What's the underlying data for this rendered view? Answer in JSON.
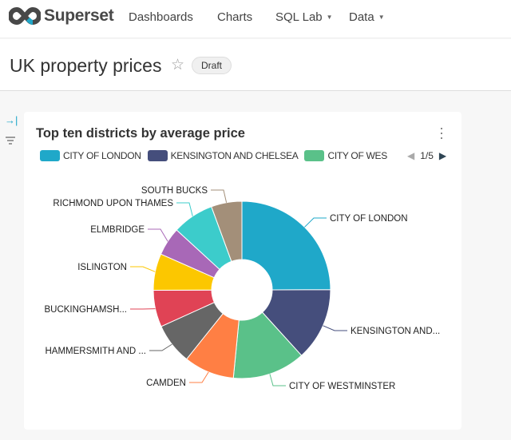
{
  "nav": {
    "brand": "Superset",
    "items": [
      {
        "label": "Dashboards"
      },
      {
        "label": "Charts"
      },
      {
        "label": "SQL Lab",
        "dropdown": true
      },
      {
        "label": "Data",
        "dropdown": true
      }
    ]
  },
  "dashboard": {
    "title": "UK property prices",
    "status": "Draft"
  },
  "chart": {
    "title": "Top ten districts by average price",
    "legend": {
      "items": [
        "CITY OF LONDON",
        "KENSINGTON AND CHELSEA",
        "CITY OF WES"
      ],
      "page": "1/5"
    }
  },
  "chart_data": {
    "type": "pie",
    "donut": true,
    "unit": "percent share (estimated)",
    "slices": [
      {
        "label": "CITY OF LONDON",
        "value": 25.0,
        "color": "#1FA8C9"
      },
      {
        "label": "KENSINGTON AND...",
        "value": 13.3,
        "color": "#454E7C"
      },
      {
        "label": "CITY OF WESTMINSTER",
        "value": 13.3,
        "color": "#5AC189"
      },
      {
        "label": "CAMDEN",
        "value": 9.2,
        "color": "#FF7F44"
      },
      {
        "label": "HAMMERSMITH AND ...",
        "value": 7.5,
        "color": "#666666"
      },
      {
        "label": "BUCKINGHAMSH...",
        "value": 6.7,
        "color": "#E04355"
      },
      {
        "label": "ISLINGTON",
        "value": 6.7,
        "color": "#FCC700"
      },
      {
        "label": "ELMBRIDGE",
        "value": 5.2,
        "color": "#A868B7"
      },
      {
        "label": "RICHMOND UPON THAMES",
        "value": 7.6,
        "color": "#3CCCCB"
      },
      {
        "label": "SOUTH BUCKS",
        "value": 5.6,
        "color": "#A38F79"
      }
    ]
  }
}
